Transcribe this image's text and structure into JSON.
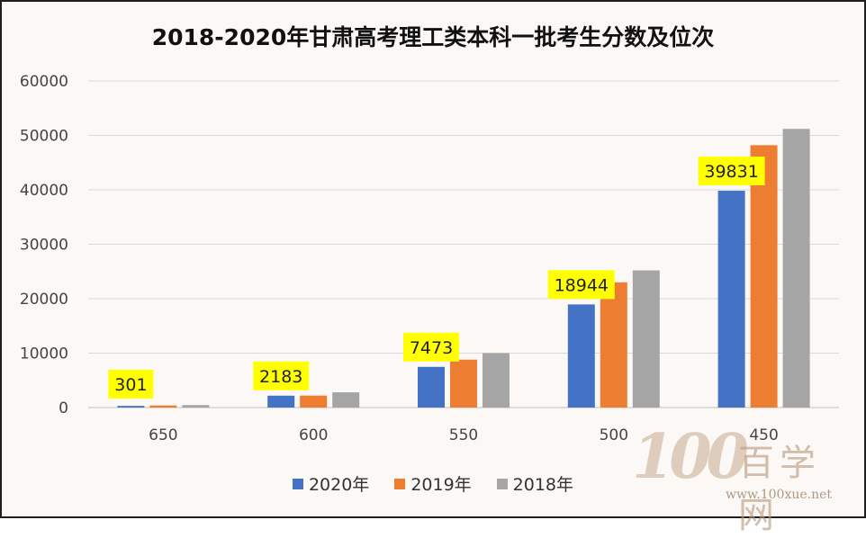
{
  "chart_data": {
    "type": "bar",
    "title": "2018-2020年甘肃高考理工类本科一批考生分数及位次",
    "categories": [
      "650",
      "600",
      "550",
      "500",
      "450"
    ],
    "series": [
      {
        "name": "2020年",
        "color": "#4472c4",
        "values": [
          301,
          2183,
          7473,
          18944,
          39831
        ]
      },
      {
        "name": "2019年",
        "color": "#ed7d31",
        "values": [
          380,
          2200,
          8800,
          23000,
          48200
        ]
      },
      {
        "name": "2018年",
        "color": "#a5a5a5",
        "values": [
          450,
          2800,
          10000,
          25200,
          51200
        ]
      }
    ],
    "data_labels": [
      {
        "series": 0,
        "category": 0,
        "text": "301"
      },
      {
        "series": 0,
        "category": 1,
        "text": "2183"
      },
      {
        "series": 0,
        "category": 2,
        "text": "7473"
      },
      {
        "series": 0,
        "category": 3,
        "text": "18944"
      },
      {
        "series": 0,
        "category": 4,
        "text": "39831"
      }
    ],
    "yticks": [
      "0",
      "10000",
      "20000",
      "30000",
      "40000",
      "50000",
      "60000"
    ],
    "ylim": [
      0,
      60000
    ],
    "grid": true,
    "legend_position": "bottom",
    "label_highlight_color": "#ffff00"
  },
  "watermark": {
    "logo": "100",
    "name": "百学网",
    "url": "www.100xue.net"
  }
}
